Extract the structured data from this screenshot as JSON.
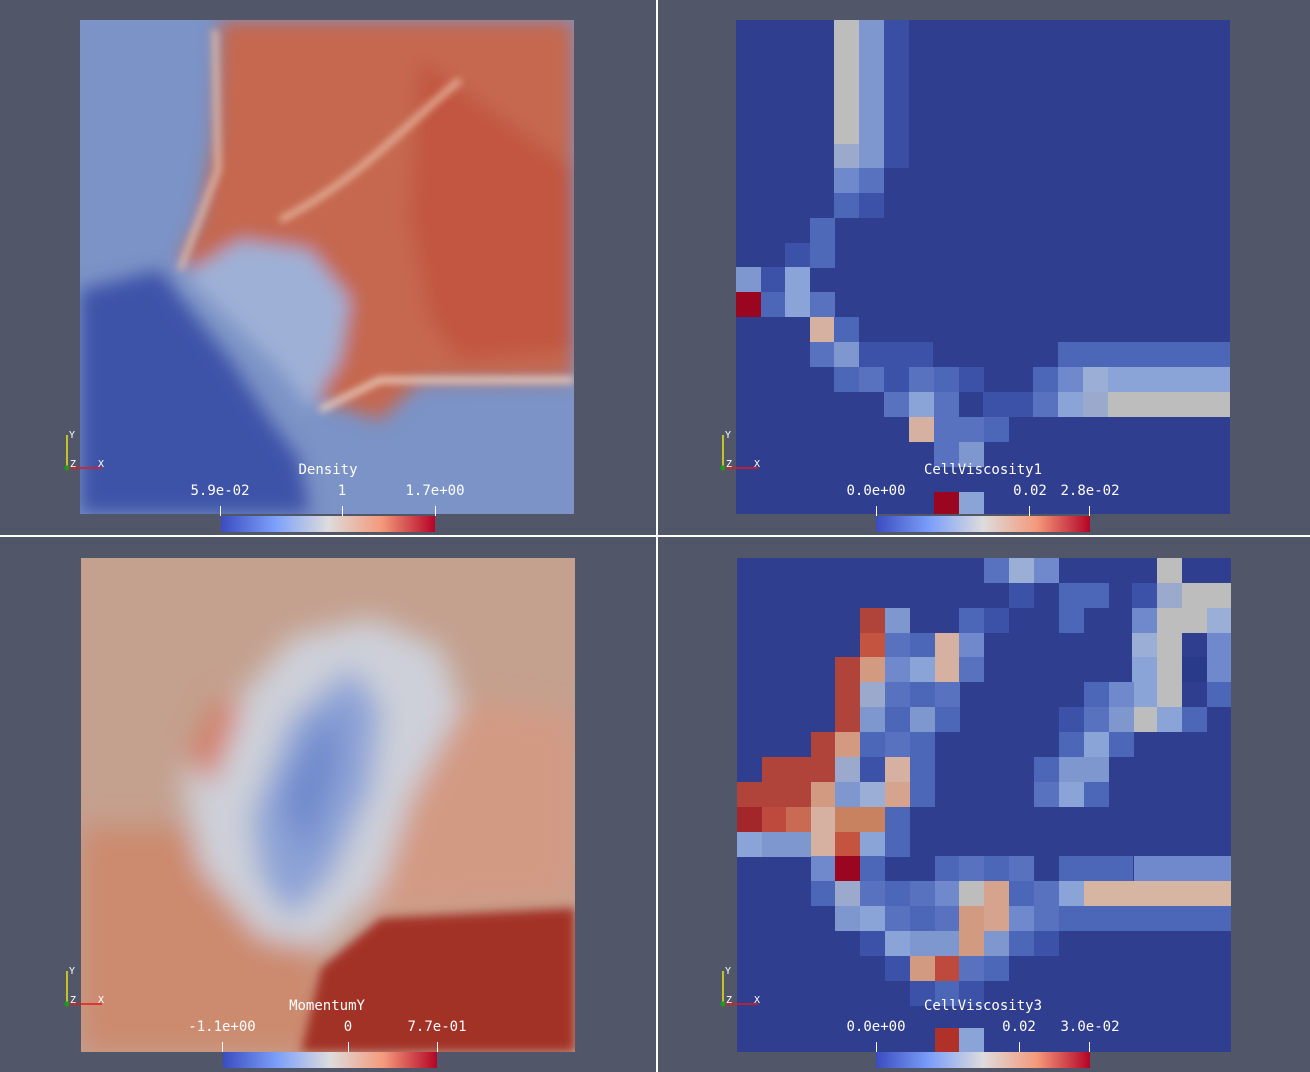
{
  "panels": [
    {
      "field": "Density",
      "labels": [
        "5.9e-02",
        "1",
        "1.7e+00"
      ]
    },
    {
      "field": "CellViscosity1",
      "labels": [
        "0.0e+00",
        "0.02",
        "2.8e-02"
      ]
    },
    {
      "field": "MomentumY",
      "labels": [
        "-1.1e+00",
        "0",
        "7.7e-01"
      ]
    },
    {
      "field": "CellViscosity3",
      "labels": [
        "0.0e+00",
        "0.02",
        "3.0e-02"
      ]
    }
  ],
  "axes": {
    "y": "Y",
    "z": "Z",
    "x": "X"
  },
  "colors": {
    "background": "#525669",
    "low": "#3b4cc0",
    "mid": "#dddcdc",
    "high": "#b40426"
  }
}
